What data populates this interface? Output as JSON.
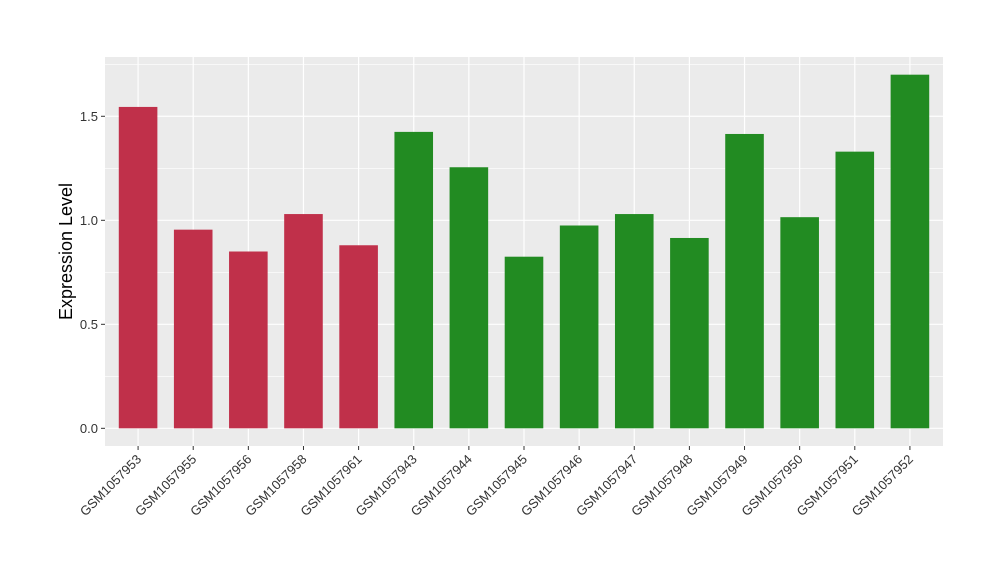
{
  "chart_data": {
    "type": "bar",
    "title": "",
    "xlabel": "",
    "ylabel": "Expression Level",
    "categories": [
      "GSM1057953",
      "GSM1057955",
      "GSM1057956",
      "GSM1057958",
      "GSM1057961",
      "GSM1057943",
      "GSM1057944",
      "GSM1057945",
      "GSM1057946",
      "GSM1057947",
      "GSM1057948",
      "GSM1057949",
      "GSM1057950",
      "GSM1057951",
      "GSM1057952"
    ],
    "values": [
      1.545,
      0.955,
      0.85,
      1.03,
      0.88,
      1.425,
      1.255,
      0.825,
      0.975,
      1.03,
      0.915,
      1.415,
      1.015,
      1.33,
      1.7
    ],
    "bar_colors": [
      "#C0304A",
      "#C0304A",
      "#C0304A",
      "#C0304A",
      "#C0304A",
      "#228B22",
      "#228B22",
      "#228B22",
      "#228B22",
      "#228B22",
      "#228B22",
      "#228B22",
      "#228B22",
      "#228B22",
      "#228B22"
    ],
    "yticks": [
      "0.0",
      "0.5",
      "1.0",
      "1.5"
    ],
    "ylim": [
      -0.085,
      1.785
    ],
    "grid": true,
    "legend": "none",
    "panel_background": "#EBEBEB"
  }
}
